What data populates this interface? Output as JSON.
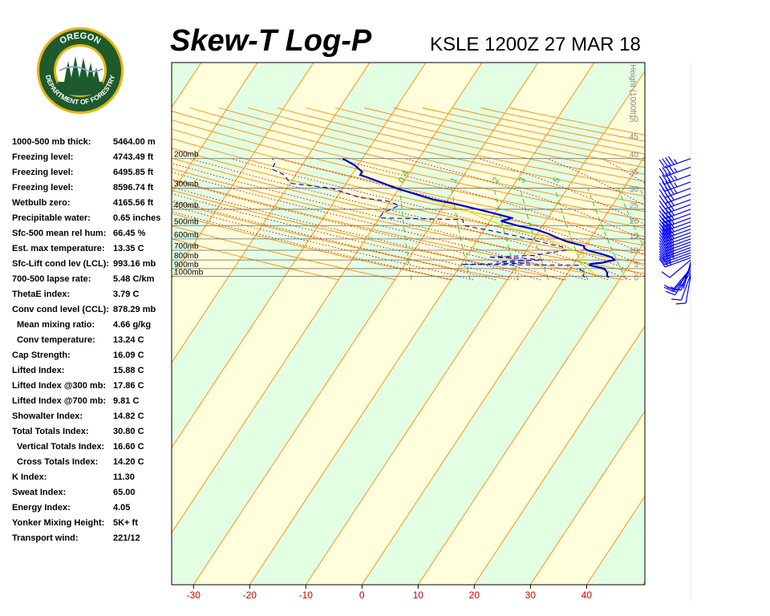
{
  "header": {
    "title": "Skew-T Log-P",
    "station": "KSLE 1200Z 27 MAR 18"
  },
  "logo": {
    "top_text": "OREGON",
    "bottom_text": "DEPARTMENT OF FORESTRY",
    "colors": {
      "ring": "#1d5a2c",
      "gold": "#e9b40c",
      "sky": "#ffffff"
    }
  },
  "stats": [
    {
      "label": "1000-500 mb thick:",
      "value": "5464.00 m",
      "indent": false
    },
    {
      "label": "Freezing level:",
      "value": "4743.49 ft",
      "indent": false
    },
    {
      "label": "Freezing level:",
      "value": "6495.85 ft",
      "indent": false
    },
    {
      "label": "Freezing level:",
      "value": "8596.74 ft",
      "indent": false
    },
    {
      "label": "Wetbulb zero:",
      "value": "4165.56 ft",
      "indent": false
    },
    {
      "label": "Precipitable water:",
      "value": "0.65 inches",
      "indent": false
    },
    {
      "label": "Sfc-500 mean rel hum:",
      "value": "66.45 %",
      "indent": false
    },
    {
      "label": "Est. max temperature:",
      "value": "13.35 C",
      "indent": false
    },
    {
      "label": "Sfc-Lift cond lev (LCL):",
      "value": "993.16 mb",
      "indent": false
    },
    {
      "label": "700-500 lapse rate:",
      "value": "5.48 C/km",
      "indent": false
    },
    {
      "label": "ThetaE index:",
      "value": "3.79 C",
      "indent": false
    },
    {
      "label": "Conv cond level (CCL):",
      "value": "878.29 mb",
      "indent": false
    },
    {
      "label": "Mean mixing ratio:",
      "value": "4.66 g/kg",
      "indent": true
    },
    {
      "label": "Conv temperature:",
      "value": "13.24 C",
      "indent": true
    },
    {
      "label": "Cap Strength:",
      "value": "16.09 C",
      "indent": false
    },
    {
      "label": "Lifted Index:",
      "value": "15.88 C",
      "indent": false
    },
    {
      "label": "Lifted Index @300 mb:",
      "value": "17.86 C",
      "indent": false
    },
    {
      "label": "Lifted Index @700 mb:",
      "value": "9.81 C",
      "indent": false
    },
    {
      "label": "Showalter Index:",
      "value": "14.82 C",
      "indent": false
    },
    {
      "label": "Total Totals Index:",
      "value": "30.80 C",
      "indent": false
    },
    {
      "label": "Vertical Totals Index:",
      "value": "16.60 C",
      "indent": true
    },
    {
      "label": "Cross Totals Index:",
      "value": "14.20 C",
      "indent": true
    },
    {
      "label": "K Index:",
      "value": "11.30",
      "indent": false
    },
    {
      "label": "Sweat Index:",
      "value": "65.00",
      "indent": false
    },
    {
      "label": "Energy Index:",
      "value": "4.05",
      "indent": false
    },
    {
      "label": "Yonker Mixing Height:",
      "value": "5K+ ft",
      "indent": false
    },
    {
      "label": "Transport wind:",
      "value": "221/12",
      "indent": false
    }
  ],
  "chart_data": {
    "type": "line",
    "title": "Skew-T Log-P",
    "subtitle": "KSLE 1200Z 27 MAR 18",
    "x_axis": {
      "ticks": [
        -30,
        -20,
        -10,
        0,
        10,
        20,
        30,
        40
      ],
      "tick_colors": {
        "negative": "#cc0000",
        "zero": "#cc0000",
        "positive": "#cc0000"
      },
      "unit": "C"
    },
    "pressure_levels": [
      {
        "label": "200mb",
        "p": 200
      },
      {
        "label": "300mb",
        "p": 300
      },
      {
        "label": "400mb",
        "p": 400
      },
      {
        "label": "500mb",
        "p": 500
      },
      {
        "label": "600mb",
        "p": 600
      },
      {
        "label": "700mb",
        "p": 700
      },
      {
        "label": "800mb",
        "p": 800
      },
      {
        "label": "900mb",
        "p": 900
      },
      {
        "label": "1000mb",
        "p": 1000
      }
    ],
    "height_axis": {
      "title": "Height (1000ft)",
      "ticks": [
        {
          "label": "0",
          "p": 1013
        },
        {
          "label": "5",
          "p": 843
        },
        {
          "label": "10",
          "p": 697
        },
        {
          "label": "15",
          "p": 572
        },
        {
          "label": "20",
          "p": 466
        },
        {
          "label": "25",
          "p": 376
        },
        {
          "label": "30",
          "p": 301
        },
        {
          "label": "35",
          "p": 238
        },
        {
          "label": "40",
          "p": 188
        },
        {
          "label": "45",
          "p": 147
        },
        {
          "label": "50",
          "p": 116
        }
      ]
    },
    "mixing_ratio_labels": [
      "0.4",
      "1",
      "2",
      "3",
      "5"
    ],
    "series": [
      {
        "name": "",
        "color": "#0000cc",
        "style": "solid",
        "points": [
          {
            "p": 1013,
            "t": 7.8
          },
          {
            "p": 990,
            "t": 7.3
          },
          {
            "p": 950,
            "t": 7.0
          },
          {
            "p": 900,
            "t": 6.0
          },
          {
            "p": 860,
            "t": 3.0
          },
          {
            "p": 845,
            "t": 3.0
          },
          {
            "p": 830,
            "t": 5.0
          },
          {
            "p": 800,
            "t": 6.8
          },
          {
            "p": 770,
            "t": 6.0
          },
          {
            "p": 740,
            "t": 4.0
          },
          {
            "p": 700,
            "t": 0.8
          },
          {
            "p": 680,
            "t": 0.0
          },
          {
            "p": 660,
            "t": -0.3
          },
          {
            "p": 620,
            "t": -4.0
          },
          {
            "p": 590,
            "t": -6.0
          },
          {
            "p": 560,
            "t": -8.0
          },
          {
            "p": 530,
            "t": -10.5
          },
          {
            "p": 500,
            "t": -14.5
          },
          {
            "p": 470,
            "t": -18.0
          },
          {
            "p": 460,
            "t": -17.0
          },
          {
            "p": 450,
            "t": -16.5
          },
          {
            "p": 420,
            "t": -20.5
          },
          {
            "p": 400,
            "t": -23.5
          },
          {
            "p": 370,
            "t": -28.5
          },
          {
            "p": 350,
            "t": -32.5
          },
          {
            "p": 300,
            "t": -40.5
          },
          {
            "p": 270,
            "t": -45.0
          },
          {
            "p": 250,
            "t": -48.5
          },
          {
            "p": 240,
            "t": -48.5
          },
          {
            "p": 220,
            "t": -50.5
          },
          {
            "p": 200,
            "t": -53.5
          }
        ]
      },
      {
        "name": "",
        "color": "#0000cc",
        "style": "dashed",
        "points": [
          {
            "p": 1013,
            "t": 3.5
          },
          {
            "p": 990,
            "t": 3.0
          },
          {
            "p": 950,
            "t": 3.0
          },
          {
            "p": 900,
            "t": 1.5
          },
          {
            "p": 860,
            "t": 1.0
          },
          {
            "p": 850,
            "t": -20.0
          },
          {
            "p": 835,
            "t": -8.0
          },
          {
            "p": 820,
            "t": -14.0
          },
          {
            "p": 800,
            "t": -6.0
          },
          {
            "p": 780,
            "t": -10.0
          },
          {
            "p": 770,
            "t": -16.0
          },
          {
            "p": 750,
            "t": -8.0
          },
          {
            "p": 700,
            "t": -3.0
          },
          {
            "p": 670,
            "t": -4.0
          },
          {
            "p": 620,
            "t": -9.0
          },
          {
            "p": 580,
            "t": -13.0
          },
          {
            "p": 540,
            "t": -18.0
          },
          {
            "p": 500,
            "t": -24.0
          },
          {
            "p": 460,
            "t": -25.0
          },
          {
            "p": 450,
            "t": -40.0
          },
          {
            "p": 420,
            "t": -40.0
          },
          {
            "p": 400,
            "t": -39.0
          },
          {
            "p": 380,
            "t": -38.0
          },
          {
            "p": 360,
            "t": -40.0
          },
          {
            "p": 340,
            "t": -46.0
          },
          {
            "p": 300,
            "t": -52.0
          },
          {
            "p": 280,
            "t": -60.0
          },
          {
            "p": 250,
            "t": -62.0
          },
          {
            "p": 230,
            "t": -65.0
          },
          {
            "p": 215,
            "t": -65.0
          },
          {
            "p": 200,
            "t": -66.0
          }
        ]
      },
      {
        "name": "",
        "color": "#dddd00",
        "style": "solid",
        "points": [
          {
            "p": 1013,
            "t": 5.2
          },
          {
            "p": 950,
            "t": 4.5
          },
          {
            "p": 900,
            "t": 3.0
          },
          {
            "p": 860,
            "t": 2.0
          },
          {
            "p": 820,
            "t": 1.0
          },
          {
            "p": 790,
            "t": 0.5
          },
          {
            "p": 760,
            "t": 1.0
          },
          {
            "p": 730,
            "t": 0.0
          },
          {
            "p": 700,
            "t": -1.8
          },
          {
            "p": 650,
            "t": -4.0
          },
          {
            "p": 600,
            "t": -8.0
          },
          {
            "p": 550,
            "t": -11.5
          },
          {
            "p": 500,
            "t": -17.0
          },
          {
            "p": 450,
            "t": -21.5
          },
          {
            "p": 400,
            "t": -26.0
          },
          {
            "p": 360,
            "t": -32.0
          },
          {
            "p": 340,
            "t": -35.0
          }
        ]
      }
    ],
    "winds": [
      {
        "p": 1000,
        "dir": 190,
        "speed": 10
      },
      {
        "p": 975,
        "dir": 200,
        "speed": 10
      },
      {
        "p": 950,
        "dir": 215,
        "speed": 15
      },
      {
        "p": 925,
        "dir": 220,
        "speed": 15
      },
      {
        "p": 900,
        "dir": 220,
        "speed": 10
      },
      {
        "p": 875,
        "dir": 210,
        "speed": 10
      },
      {
        "p": 850,
        "dir": 200,
        "speed": 10
      },
      {
        "p": 825,
        "dir": 195,
        "speed": 5
      },
      {
        "p": 800,
        "dir": 230,
        "speed": 10
      },
      {
        "p": 775,
        "dir": 250,
        "speed": 25
      },
      {
        "p": 750,
        "dir": 250,
        "speed": 30
      },
      {
        "p": 725,
        "dir": 250,
        "speed": 35
      },
      {
        "p": 700,
        "dir": 250,
        "speed": 40
      },
      {
        "p": 675,
        "dir": 250,
        "speed": 40
      },
      {
        "p": 650,
        "dir": 250,
        "speed": 40
      },
      {
        "p": 625,
        "dir": 250,
        "speed": 40
      },
      {
        "p": 600,
        "dir": 250,
        "speed": 40
      },
      {
        "p": 575,
        "dir": 250,
        "speed": 40
      },
      {
        "p": 550,
        "dir": 250,
        "speed": 40
      },
      {
        "p": 525,
        "dir": 250,
        "speed": 40
      },
      {
        "p": 500,
        "dir": 250,
        "speed": 40
      },
      {
        "p": 475,
        "dir": 250,
        "speed": 40
      },
      {
        "p": 450,
        "dir": 250,
        "speed": 40
      },
      {
        "p": 425,
        "dir": 250,
        "speed": 40
      },
      {
        "p": 400,
        "dir": 250,
        "speed": 40
      },
      {
        "p": 375,
        "dir": 250,
        "speed": 40
      },
      {
        "p": 350,
        "dir": 250,
        "speed": 40
      },
      {
        "p": 325,
        "dir": 250,
        "speed": 40
      },
      {
        "p": 300,
        "dir": 250,
        "speed": 45
      },
      {
        "p": 275,
        "dir": 250,
        "speed": 45
      },
      {
        "p": 250,
        "dir": 250,
        "speed": 45
      },
      {
        "p": 225,
        "dir": 250,
        "speed": 45
      },
      {
        "p": 200,
        "dir": 250,
        "speed": 45
      }
    ],
    "colors": {
      "band_yellow": "#ffffdc",
      "band_green": "#e3ffe3",
      "isotherm": "#ff8800",
      "dry_adiabat": "#ff8800",
      "moist_adiabat": "#cc0000",
      "mixing_ratio": "#33bb33",
      "isobar": "#666666",
      "barb": "#0000ff"
    }
  }
}
